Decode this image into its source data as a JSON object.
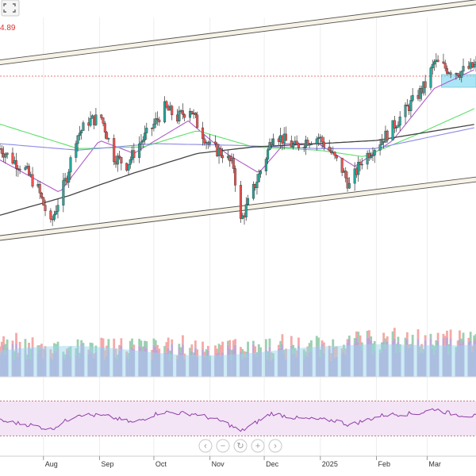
{
  "toolbar": {
    "fullscreen_icon": "expand-arrows-icon"
  },
  "price_readout": "4.89",
  "navigator": {
    "buttons": [
      {
        "name": "scroll-left-button",
        "icon": "chevron-left-icon",
        "glyph": "‹"
      },
      {
        "name": "zoom-out-button",
        "icon": "minus-icon",
        "glyph": "−"
      },
      {
        "name": "reset-button",
        "icon": "reset-icon",
        "glyph": "↻"
      },
      {
        "name": "zoom-in-button",
        "icon": "plus-icon",
        "glyph": "+"
      },
      {
        "name": "scroll-right-button",
        "icon": "chevron-right-icon",
        "glyph": "›"
      }
    ]
  },
  "colors": {
    "up": "#26a69a",
    "down": "#ef5350",
    "vol_up": "#9ccfb0",
    "vol_down": "#f4a9a8",
    "vol_base": "#b49ad0",
    "vol_area": "#9bd7ec",
    "ma_fast": "#b05cc8",
    "ma_mid": "#5ce06a",
    "ma_slow": "#8a8ae6",
    "ma_long": "#444444",
    "channel": "#c8b48a",
    "rsi": "#8e3ea6",
    "rsi_band": "#f3e4f6",
    "highlight": "#7ed9f0"
  },
  "chart_data": {
    "type": "candlestick",
    "x_labels": [
      {
        "label": "Aug",
        "date": "2024-08-01"
      },
      {
        "label": "Sep",
        "date": "2024-09-01"
      },
      {
        "label": "Oct",
        "date": "2024-10-01"
      },
      {
        "label": "Nov",
        "date": "2024-11-01"
      },
      {
        "label": "Dec",
        "date": "2024-12-01"
      },
      {
        "label": "2025",
        "date": "2025-01-01"
      },
      {
        "label": "Feb",
        "date": "2025-02-01"
      },
      {
        "label": "Mar",
        "date": "2025-03-01"
      }
    ],
    "x_range": [
      "2024-07-08",
      "2025-03-28"
    ],
    "y_range": [
      0,
      100
    ],
    "price_keypoints": [
      [
        "2024-07-08",
        55
      ],
      [
        "2024-07-15",
        48
      ],
      [
        "2024-07-22",
        42
      ],
      [
        "2024-07-29",
        30
      ],
      [
        "2024-08-05",
        8
      ],
      [
        "2024-08-09",
        22
      ],
      [
        "2024-08-14",
        38
      ],
      [
        "2024-08-19",
        62
      ],
      [
        "2024-08-26",
        72
      ],
      [
        "2024-09-02",
        74
      ],
      [
        "2024-09-09",
        50
      ],
      [
        "2024-09-16",
        45
      ],
      [
        "2024-09-23",
        58
      ],
      [
        "2024-09-30",
        68
      ],
      [
        "2024-10-07",
        80
      ],
      [
        "2024-10-14",
        74
      ],
      [
        "2024-10-21",
        80
      ],
      [
        "2024-10-25",
        70
      ],
      [
        "2024-11-01",
        56
      ],
      [
        "2024-11-08",
        52
      ],
      [
        "2024-11-14",
        44
      ],
      [
        "2024-11-18",
        10
      ],
      [
        "2024-11-25",
        30
      ],
      [
        "2024-12-02",
        50
      ],
      [
        "2024-12-06",
        65
      ],
      [
        "2024-12-12",
        60
      ],
      [
        "2024-12-18",
        56
      ],
      [
        "2024-12-24",
        60
      ],
      [
        "2024-12-31",
        62
      ],
      [
        "2025-01-06",
        54
      ],
      [
        "2025-01-13",
        42
      ],
      [
        "2025-01-17",
        32
      ],
      [
        "2025-01-24",
        48
      ],
      [
        "2025-01-31",
        56
      ],
      [
        "2025-02-07",
        64
      ],
      [
        "2025-02-14",
        74
      ],
      [
        "2025-02-21",
        84
      ],
      [
        "2025-02-28",
        94
      ],
      [
        "2025-03-05",
        108
      ],
      [
        "2025-03-12",
        104
      ],
      [
        "2025-03-19",
        102
      ],
      [
        "2025-03-28",
        106
      ]
    ],
    "channel_upper": [
      [
        "2024-07-08",
        108
      ],
      [
        "2025-03-28",
        145
      ]
    ],
    "channel_lower": [
      [
        "2024-07-08",
        0
      ],
      [
        "2025-03-28",
        36
      ]
    ],
    "moving_averages": [
      {
        "key": "ma_fast",
        "points": [
          [
            "2024-07-08",
            48
          ],
          [
            "2024-08-10",
            28
          ],
          [
            "2024-09-01",
            60
          ],
          [
            "2024-09-20",
            52
          ],
          [
            "2024-10-20",
            72
          ],
          [
            "2024-11-10",
            52
          ],
          [
            "2024-11-28",
            40
          ],
          [
            "2024-12-12",
            58
          ],
          [
            "2024-12-31",
            58
          ],
          [
            "2025-01-20",
            44
          ],
          [
            "2025-02-10",
            60
          ],
          [
            "2025-03-05",
            92
          ],
          [
            "2025-03-28",
            104
          ]
        ]
      },
      {
        "key": "ma_mid",
        "points": [
          [
            "2024-07-08",
            70
          ],
          [
            "2024-08-20",
            55
          ],
          [
            "2024-09-25",
            56
          ],
          [
            "2024-10-25",
            66
          ],
          [
            "2024-11-25",
            56
          ],
          [
            "2024-12-31",
            54
          ],
          [
            "2025-01-25",
            50
          ],
          [
            "2025-02-20",
            62
          ],
          [
            "2025-03-28",
            80
          ]
        ]
      },
      {
        "key": "ma_slow",
        "points": [
          [
            "2024-07-08",
            58
          ],
          [
            "2024-08-20",
            54
          ],
          [
            "2024-10-01",
            58
          ],
          [
            "2024-11-15",
            57
          ],
          [
            "2024-12-31",
            55
          ],
          [
            "2025-01-31",
            55
          ],
          [
            "2025-03-28",
            68
          ]
        ]
      },
      {
        "key": "ma_long",
        "points": [
          [
            "2024-07-08",
            14
          ],
          [
            "2024-08-15",
            26
          ],
          [
            "2024-09-20",
            40
          ],
          [
            "2024-10-25",
            52
          ],
          [
            "2024-11-25",
            56
          ],
          [
            "2024-12-31",
            58
          ],
          [
            "2025-02-01",
            60
          ],
          [
            "2025-03-28",
            70
          ]
        ]
      }
    ],
    "highlight_range": [
      "2025-03-01",
      "2025-03-28"
    ],
    "rsi": {
      "ylim": [
        0,
        100
      ],
      "overbought": 70,
      "oversold": 30,
      "keypoints": [
        [
          "2024-07-08",
          45
        ],
        [
          "2024-07-25",
          35
        ],
        [
          "2024-08-05",
          25
        ],
        [
          "2024-08-20",
          60
        ],
        [
          "2024-09-05",
          55
        ],
        [
          "2024-09-20",
          40
        ],
        [
          "2024-10-05",
          65
        ],
        [
          "2024-10-25",
          60
        ],
        [
          "2024-11-10",
          40
        ],
        [
          "2024-11-18",
          20
        ],
        [
          "2024-12-05",
          62
        ],
        [
          "2024-12-20",
          50
        ],
        [
          "2025-01-10",
          45
        ],
        [
          "2025-01-17",
          35
        ],
        [
          "2025-02-05",
          58
        ],
        [
          "2025-02-25",
          62
        ],
        [
          "2025-03-05",
          72
        ],
        [
          "2025-03-15",
          60
        ],
        [
          "2025-03-28",
          55
        ]
      ]
    },
    "volume": {
      "ylim": [
        0,
        100
      ]
    }
  }
}
